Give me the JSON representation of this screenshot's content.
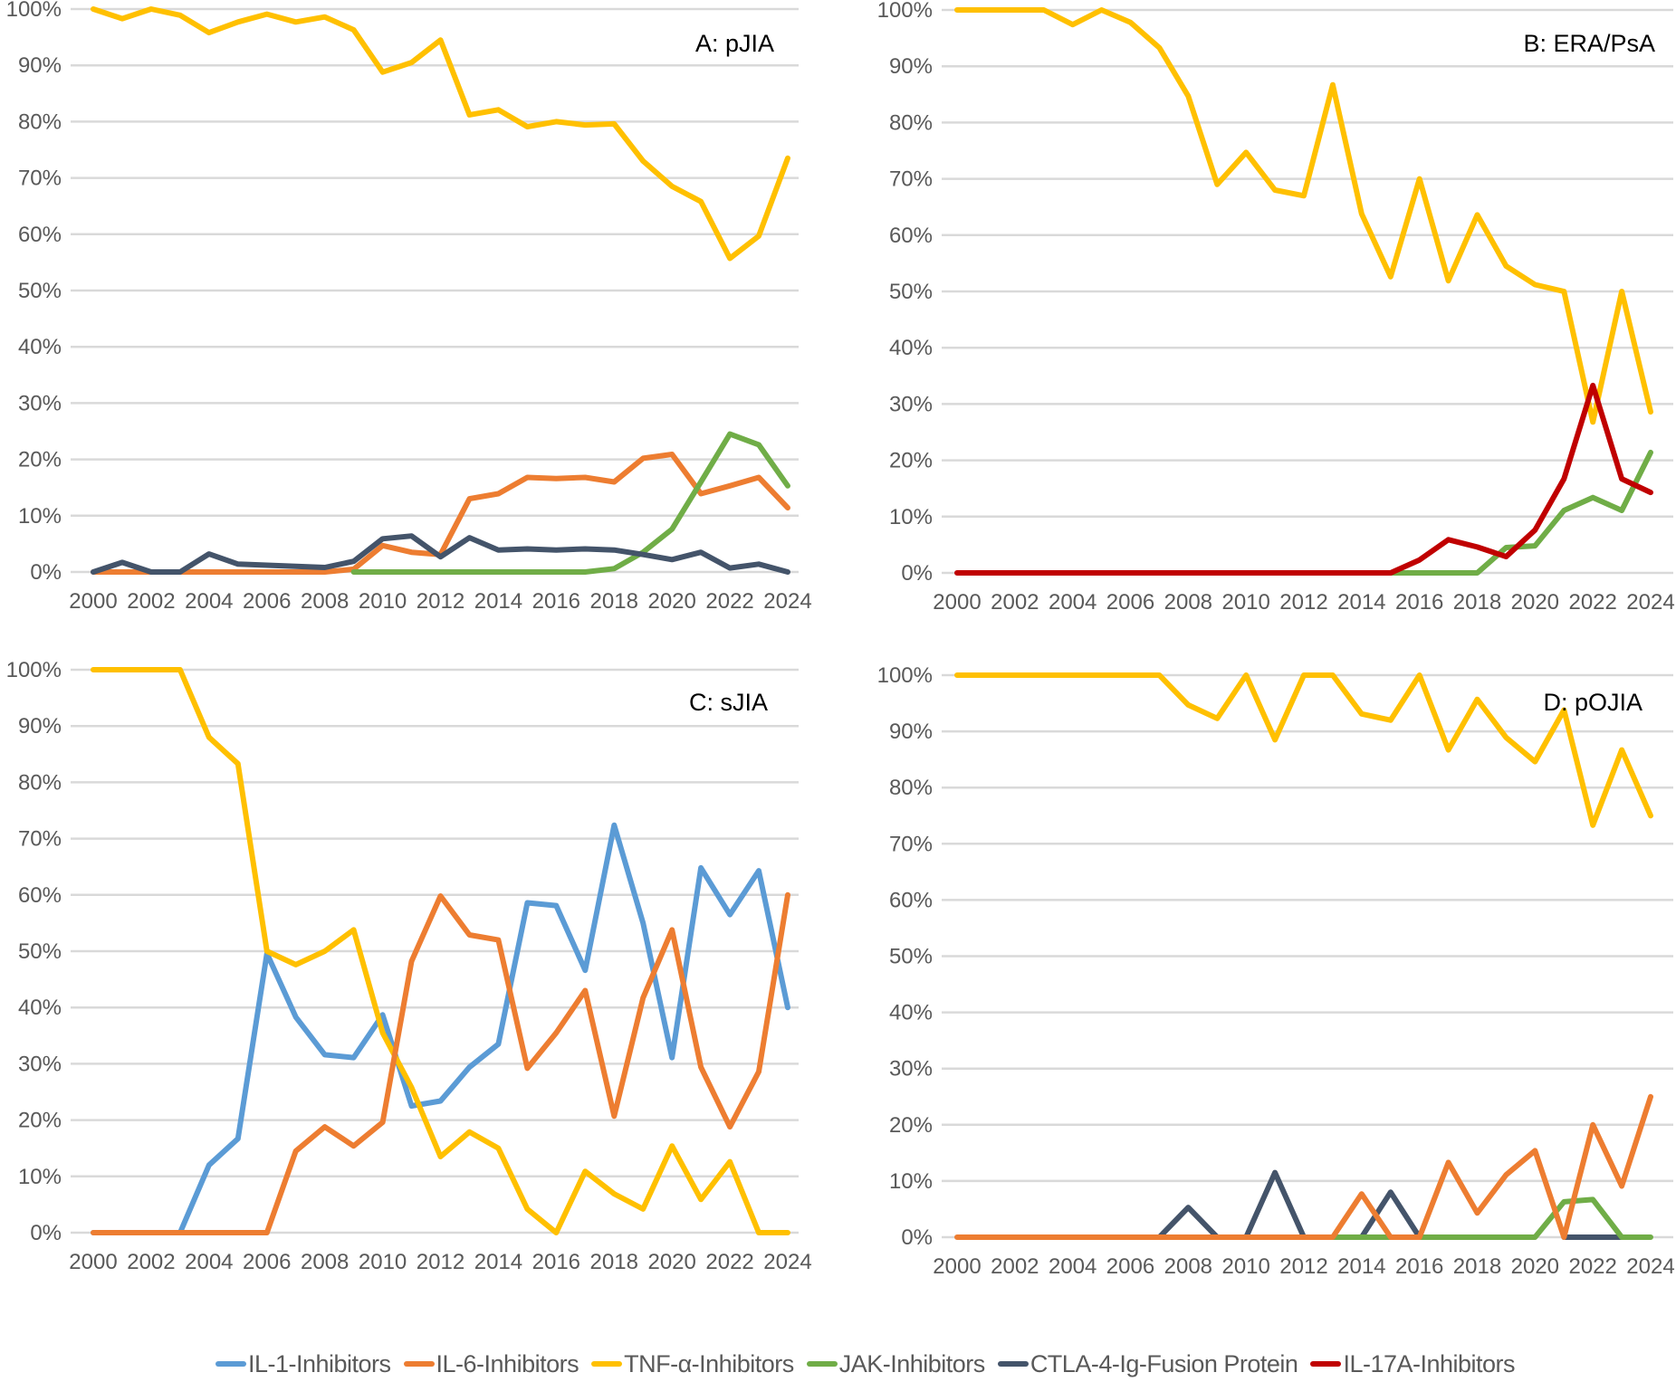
{
  "legend": [
    {
      "key": "il1",
      "label": "IL-1-Inhibitors",
      "color": "#5b9bd5"
    },
    {
      "key": "il6",
      "label": "IL-6-Inhibitors",
      "color": "#ed7d31"
    },
    {
      "key": "tnf",
      "label": "TNF-α-Inhibitors",
      "color": "#ffc000"
    },
    {
      "key": "jak",
      "label": "JAK-Inhibitors",
      "color": "#70ad47"
    },
    {
      "key": "ctla4",
      "label": "CTLA-4-Ig-Fusion Protein",
      "color": "#44546a"
    },
    {
      "key": "il17a",
      "label": "IL-17A-Inhibitors",
      "color": "#c00000"
    }
  ],
  "chart_data": [
    {
      "type": "line",
      "title": "A: pJIA",
      "xlabel": "",
      "ylabel": "",
      "x": [
        2000,
        2001,
        2002,
        2003,
        2004,
        2005,
        2006,
        2007,
        2008,
        2009,
        2010,
        2011,
        2012,
        2013,
        2014,
        2015,
        2016,
        2017,
        2018,
        2019,
        2020,
        2021,
        2022,
        2023,
        2024
      ],
      "xticks": [
        "2000",
        "2002",
        "2004",
        "2006",
        "2008",
        "2010",
        "2012",
        "2014",
        "2016",
        "2018",
        "2020",
        "2022",
        "2024"
      ],
      "yticks": [
        "0%",
        "10%",
        "20%",
        "30%",
        "40%",
        "50%",
        "60%",
        "70%",
        "80%",
        "90%",
        "100%"
      ],
      "ylim": [
        0,
        100
      ],
      "grid": true,
      "series": [
        {
          "key": "il6",
          "name": "IL-6-Inhibitors",
          "values": [
            0,
            0,
            0,
            0,
            0,
            0,
            0,
            0,
            0,
            0.5,
            4.7,
            3.5,
            3.1,
            13,
            13.9,
            16.8,
            16.6,
            16.8,
            16,
            20.2,
            20.9,
            13.9,
            15.3,
            16.8,
            11.4
          ]
        },
        {
          "key": "jak",
          "name": "JAK-Inhibitors",
          "values": [
            null,
            null,
            null,
            null,
            null,
            null,
            null,
            null,
            null,
            0,
            0,
            0,
            0,
            0,
            0,
            0,
            0,
            0,
            0.6,
            3.5,
            7.6,
            16,
            24.5,
            22.6,
            15.3
          ]
        },
        {
          "key": "ctla4",
          "name": "CTLA-4-Ig-Fusion Protein",
          "values": [
            0,
            1.7,
            0,
            0,
            3.2,
            1.4,
            1.2,
            1,
            0.8,
            1.9,
            5.9,
            6.4,
            2.7,
            6.1,
            3.9,
            4.1,
            3.9,
            4.1,
            3.9,
            3.1,
            2.2,
            3.5,
            0.7,
            1.4,
            0
          ]
        },
        {
          "key": "tnf",
          "name": "TNF-α-Inhibitors",
          "values": [
            100,
            98.3,
            100,
            98.9,
            95.8,
            97.7,
            99.1,
            97.7,
            98.6,
            96.3,
            88.8,
            90.5,
            94.5,
            81.2,
            82.1,
            79.1,
            80,
            79.4,
            79.6,
            73,
            68.5,
            65.8,
            55.7,
            59.7,
            73.5
          ]
        }
      ]
    },
    {
      "type": "line",
      "title": "B: ERA/PsA",
      "xlabel": "",
      "ylabel": "",
      "x": [
        2000,
        2001,
        2002,
        2003,
        2004,
        2005,
        2006,
        2007,
        2008,
        2009,
        2010,
        2011,
        2012,
        2013,
        2014,
        2015,
        2016,
        2017,
        2018,
        2019,
        2020,
        2021,
        2022,
        2023,
        2024
      ],
      "xticks": [
        "2000",
        "2002",
        "2004",
        "2006",
        "2008",
        "2010",
        "2012",
        "2014",
        "2016",
        "2018",
        "2020",
        "2022",
        "2024"
      ],
      "yticks": [
        "0%",
        "10%",
        "20%",
        "30%",
        "40%",
        "50%",
        "60%",
        "70%",
        "80%",
        "90%",
        "100%"
      ],
      "ylim": [
        0,
        100
      ],
      "grid": true,
      "series": [
        {
          "key": "tnf",
          "name": "TNF-α-Inhibitors",
          "values": [
            100,
            100,
            100,
            100,
            97.4,
            100,
            97.8,
            93.3,
            84.7,
            69,
            74.7,
            68,
            67,
            86.7,
            63.8,
            52.6,
            70,
            51.9,
            63.6,
            54.5,
            51.2,
            50,
            26.8,
            50,
            28.6
          ]
        },
        {
          "key": "jak",
          "name": "JAK-Inhibitors",
          "values": [
            null,
            null,
            null,
            null,
            null,
            null,
            null,
            null,
            null,
            null,
            null,
            null,
            null,
            null,
            null,
            0,
            0,
            0,
            0,
            4.5,
            4.8,
            11.1,
            13.4,
            11.1,
            21.4
          ]
        },
        {
          "key": "il17a",
          "name": "IL-17A-Inhibitors",
          "values": [
            0,
            0,
            0,
            0,
            0,
            0,
            0,
            0,
            0,
            0,
            0,
            0,
            0,
            0,
            0,
            0,
            2.3,
            5.9,
            4.6,
            2.9,
            7.6,
            16.7,
            33.3,
            16.7,
            14.3
          ]
        }
      ]
    },
    {
      "type": "line",
      "title": "C: sJIA",
      "xlabel": "",
      "ylabel": "",
      "x": [
        2000,
        2001,
        2002,
        2003,
        2004,
        2005,
        2006,
        2007,
        2008,
        2009,
        2010,
        2011,
        2012,
        2013,
        2014,
        2015,
        2016,
        2017,
        2018,
        2019,
        2020,
        2021,
        2022,
        2023,
        2024
      ],
      "xticks": [
        "2000",
        "2002",
        "2004",
        "2006",
        "2008",
        "2010",
        "2012",
        "2014",
        "2016",
        "2018",
        "2020",
        "2022",
        "2024"
      ],
      "yticks": [
        "0%",
        "10%",
        "20%",
        "30%",
        "40%",
        "50%",
        "60%",
        "70%",
        "80%",
        "90%",
        "100%"
      ],
      "ylim": [
        0,
        100
      ],
      "grid": true,
      "series": [
        {
          "key": "il1",
          "name": "IL-1-Inhibitors",
          "values": [
            0,
            0,
            0,
            0,
            12,
            16.7,
            49.6,
            38.3,
            31.6,
            31.1,
            38.7,
            22.5,
            23.4,
            29.4,
            33.5,
            58.6,
            58.1,
            46.6,
            72.4,
            55,
            31.1,
            64.8,
            56.5,
            64.3,
            40
          ]
        },
        {
          "key": "tnf",
          "name": "TNF-α-Inhibitors",
          "values": [
            100,
            100,
            100,
            100,
            88,
            83.3,
            50,
            47.6,
            50,
            53.8,
            35.5,
            25.8,
            13.5,
            17.9,
            15,
            4.2,
            0,
            10.9,
            6.9,
            4.2,
            15.4,
            5.9,
            12.6,
            0,
            0
          ]
        },
        {
          "key": "il6",
          "name": "IL-6-Inhibitors",
          "values": [
            0,
            0,
            0,
            0,
            0,
            0,
            0,
            14.5,
            18.8,
            15.4,
            19.6,
            48.2,
            59.8,
            52.9,
            52,
            29.2,
            35.5,
            43,
            20.7,
            41.7,
            53.8,
            29.4,
            18.8,
            28.6,
            60
          ]
        }
      ]
    },
    {
      "type": "line",
      "title": "D: pOJIA",
      "xlabel": "",
      "ylabel": "",
      "x": [
        2000,
        2001,
        2002,
        2003,
        2004,
        2005,
        2006,
        2007,
        2008,
        2009,
        2010,
        2011,
        2012,
        2013,
        2014,
        2015,
        2016,
        2017,
        2018,
        2019,
        2020,
        2021,
        2022,
        2023,
        2024
      ],
      "xticks": [
        "2000",
        "2002",
        "2004",
        "2006",
        "2008",
        "2010",
        "2012",
        "2014",
        "2016",
        "2018",
        "2020",
        "2022",
        "2024"
      ],
      "yticks": [
        "0%",
        "10%",
        "20%",
        "30%",
        "40%",
        "50%",
        "60%",
        "70%",
        "80%",
        "90%",
        "100%"
      ],
      "ylim": [
        0,
        100
      ],
      "grid": true,
      "series": [
        {
          "key": "ctla4",
          "name": "CTLA-4-Ig-Fusion Protein",
          "values": [
            null,
            null,
            null,
            null,
            null,
            null,
            null,
            0,
            5.3,
            0,
            0,
            11.5,
            0,
            0,
            0,
            8,
            0,
            null,
            null,
            null,
            null,
            0,
            0,
            0,
            null
          ]
        },
        {
          "key": "jak",
          "name": "JAK-Inhibitors",
          "values": [
            null,
            null,
            null,
            null,
            null,
            null,
            null,
            null,
            null,
            null,
            null,
            null,
            null,
            0,
            0,
            0,
            0,
            0,
            0,
            0,
            0,
            6.3,
            6.7,
            0,
            0
          ]
        },
        {
          "key": "il6",
          "name": "IL-6-Inhibitors",
          "values": [
            0,
            0,
            0,
            0,
            0,
            0,
            0,
            0,
            0,
            0,
            0,
            0,
            0,
            0,
            7.7,
            0,
            0,
            13.3,
            4.3,
            11.1,
            15.4,
            0,
            20,
            9.1,
            25
          ]
        },
        {
          "key": "tnf",
          "name": "TNF-α-Inhibitors",
          "values": [
            100,
            100,
            100,
            100,
            100,
            100,
            100,
            100,
            94.7,
            92.3,
            100,
            88.5,
            100,
            100,
            93.1,
            92,
            100,
            86.7,
            95.7,
            88.9,
            84.6,
            93.8,
            73.3,
            86.7,
            75
          ]
        }
      ]
    }
  ]
}
